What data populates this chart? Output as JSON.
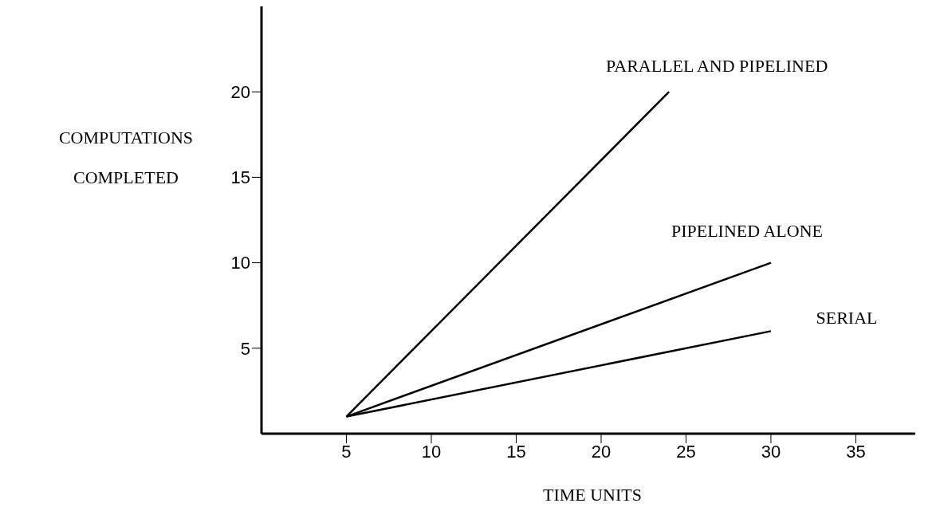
{
  "chart_data": {
    "type": "line",
    "xlabel": "TIME UNITS",
    "ylabel": "COMPUTATIONS COMPLETED",
    "xlim": [
      0,
      38.5
    ],
    "xticks": [
      5,
      10,
      15,
      20,
      25,
      30,
      35
    ],
    "ylim": [
      0,
      25
    ],
    "yticks": [
      5,
      10,
      15,
      20
    ],
    "grid": false,
    "legend": false,
    "marker": "none",
    "line_style": "solid",
    "series": [
      {
        "name": "PARALLEL AND PIPELINED",
        "color": "#000000",
        "x": [
          5,
          24
        ],
        "values": [
          1,
          20
        ]
      },
      {
        "name": "PIPELINED ALONE",
        "color": "#000000",
        "x": [
          5,
          30
        ],
        "values": [
          1,
          10
        ]
      },
      {
        "name": "SERIAL",
        "color": "#000000",
        "x": [
          5,
          30
        ],
        "values": [
          1,
          6
        ]
      }
    ]
  }
}
